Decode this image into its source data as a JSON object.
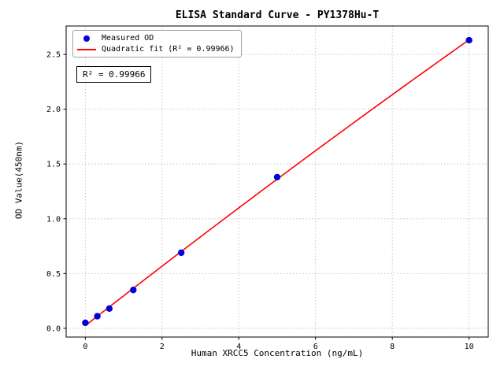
{
  "chart_data": {
    "type": "scatter",
    "title": "ELISA Standard Curve - PY1378Hu-T",
    "xlabel": "Human XRCC5 Concentration (ng/mL)",
    "ylabel": "OD Value(450nm)",
    "xlim": [
      -0.5,
      10.5
    ],
    "ylim": [
      -0.08,
      2.76
    ],
    "x_ticks": [
      0,
      2,
      4,
      6,
      8,
      10
    ],
    "x_tick_labels": [
      "0",
      "2",
      "4",
      "6",
      "8",
      "10"
    ],
    "y_ticks": [
      0,
      0.5,
      1,
      1.5,
      2,
      2.5
    ],
    "y_tick_labels": [
      "0.0",
      "0.5",
      "1.0",
      "1.5",
      "2.0",
      "2.5"
    ],
    "grid": true,
    "annotation": "R² = 0.99966",
    "r_squared": "0.99966",
    "legend": {
      "position": "upper-left",
      "entries": [
        {
          "label": "Measured OD",
          "marker": "dot",
          "color": "#0000dd"
        },
        {
          "label": "Quadratic fit (R² = 0.99966)",
          "marker": "line",
          "color": "#ff0000"
        }
      ]
    },
    "series": [
      {
        "name": "Measured OD",
        "type": "scatter",
        "color": "#0000dd",
        "x": [
          0,
          0.3125,
          0.625,
          1.25,
          2.5,
          5,
          10
        ],
        "y": [
          0.05,
          0.11,
          0.18,
          0.35,
          0.69,
          1.38,
          2.63
        ]
      },
      {
        "name": "Quadratic fit",
        "type": "line",
        "color": "#ff0000",
        "fit": {
          "a": -0.00131,
          "b": 0.27407,
          "c": 0.02418,
          "x_min": 0,
          "x_max": 10
        }
      }
    ]
  }
}
